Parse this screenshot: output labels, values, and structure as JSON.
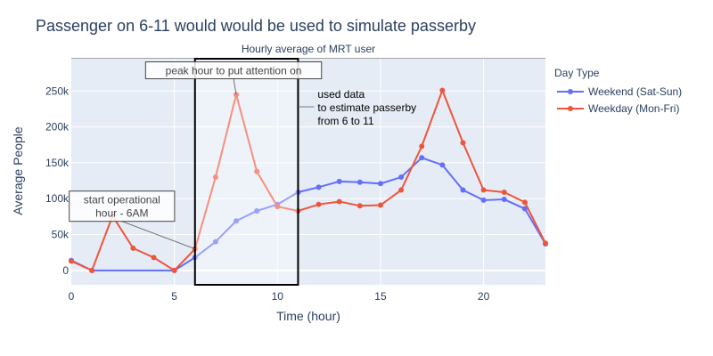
{
  "chart_data": {
    "type": "line",
    "title": "Passenger on 6-11 would would be used to simulate passerby",
    "subtitle": "Hourly average of MRT user",
    "xlabel": "Time (hour)",
    "ylabel": "Average People",
    "xlim": [
      0,
      23
    ],
    "ylim": [
      -20000,
      295000
    ],
    "x_ticks": [
      0,
      5,
      10,
      15,
      20
    ],
    "y_ticks": [
      0,
      50000,
      100000,
      150000,
      200000,
      250000
    ],
    "y_tick_labels": [
      "0",
      "50k",
      "100k",
      "150k",
      "200k",
      "250k"
    ],
    "grid": true,
    "legend": {
      "title": "Day Type",
      "position": "right"
    },
    "series": [
      {
        "name": "Weekend (Sat-Sun)",
        "color": "#636efa",
        "x": [
          0,
          1,
          5,
          6,
          7,
          8,
          9,
          10,
          11,
          12,
          13,
          14,
          15,
          16,
          17,
          18,
          19,
          20,
          21,
          22,
          23
        ],
        "values": [
          14000,
          0,
          0,
          18000,
          40000,
          69000,
          83000,
          92000,
          109000,
          116000,
          124000,
          123000,
          121000,
          130000,
          157000,
          147000,
          112000,
          98000,
          99000,
          86000,
          37000
        ]
      },
      {
        "name": "Weekday (Mon-Fri)",
        "color": "#ef553b",
        "x": [
          0,
          1,
          2,
          3,
          4,
          5,
          6,
          7,
          8,
          9,
          10,
          11,
          12,
          13,
          14,
          15,
          16,
          17,
          18,
          19,
          20,
          21,
          22,
          23
        ],
        "values": [
          13000,
          0,
          76000,
          31000,
          18000,
          0,
          30000,
          130000,
          245000,
          138000,
          89000,
          83000,
          92000,
          96000,
          90000,
          91000,
          112000,
          173000,
          251000,
          178000,
          112000,
          109000,
          95000,
          38000
        ]
      }
    ],
    "highlight": {
      "x0": 6,
      "x1": 11,
      "y0": -20000,
      "y1": 295000
    },
    "annotations": [
      {
        "text": "peak hour to put attention on",
        "x": 8,
        "y": 245000,
        "boxed": true
      },
      {
        "text": "start operational\nhour - 6AM",
        "x": 6,
        "y": 30000,
        "boxed": true
      },
      {
        "text": "used data\nto estimate passerby\nfrom 6 to 11",
        "x": 11,
        "y": 230000,
        "boxed": false
      }
    ]
  }
}
